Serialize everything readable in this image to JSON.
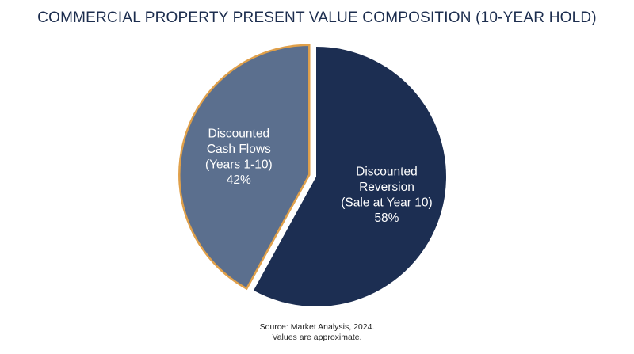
{
  "chart_data": {
    "type": "pie",
    "title": "COMMERCIAL PROPERTY PRESENT VALUE COMPOSITION (10-YEAR HOLD)",
    "slices": [
      {
        "label_lines": [
          "Discounted",
          "Reversion",
          "(Sale at Year 10)"
        ],
        "value": 58,
        "value_label": "58%",
        "color": "#1c2e52",
        "exploded": false
      },
      {
        "label_lines": [
          "Discounted",
          "Cash Flows",
          "(Years 1-10)"
        ],
        "value": 42,
        "value_label": "42%",
        "color": "#5b6f8e",
        "edge_color": "#e0a04a",
        "exploded": true
      }
    ]
  },
  "footnote": {
    "source": "Source: Market Analysis, 2024.",
    "note": "Values are approximate."
  }
}
